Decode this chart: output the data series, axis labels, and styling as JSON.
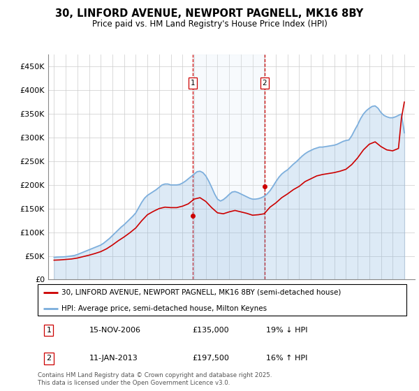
{
  "title": "30, LINFORD AVENUE, NEWPORT PAGNELL, MK16 8BY",
  "subtitle": "Price paid vs. HM Land Registry's House Price Index (HPI)",
  "property_label": "30, LINFORD AVENUE, NEWPORT PAGNELL, MK16 8BY (semi-detached house)",
  "hpi_label": "HPI: Average price, semi-detached house, Milton Keynes",
  "property_color": "#cc0000",
  "hpi_color": "#7aaddc",
  "hpi_fill_color": "#d6e8f5",
  "vline_color": "#cc0000",
  "transactions": [
    {
      "date": 2006.88,
      "price": 135000,
      "label": "1",
      "date_str": "15-NOV-2006",
      "price_str": "£135,000",
      "pct_str": "19% ↓ HPI"
    },
    {
      "date": 2013.03,
      "price": 197500,
      "label": "2",
      "date_str": "11-JAN-2013",
      "price_str": "£197,500",
      "pct_str": "16% ↑ HPI"
    }
  ],
  "footnote1": "Contains HM Land Registry data © Crown copyright and database right 2025.",
  "footnote2": "This data is licensed under the Open Government Licence v3.0.",
  "ylim": [
    0,
    475000
  ],
  "yticks": [
    0,
    50000,
    100000,
    150000,
    200000,
    250000,
    300000,
    350000,
    400000,
    450000
  ],
  "ytick_labels": [
    "£0",
    "£50K",
    "£100K",
    "£150K",
    "£200K",
    "£250K",
    "£300K",
    "£350K",
    "£400K",
    "£450K"
  ],
  "xlim_start": 1994.5,
  "xlim_end": 2025.9,
  "hpi_data": [
    [
      1995.0,
      47000
    ],
    [
      1995.25,
      47500
    ],
    [
      1995.5,
      47800
    ],
    [
      1995.75,
      48000
    ],
    [
      1996.0,
      48500
    ],
    [
      1996.25,
      49200
    ],
    [
      1996.5,
      50000
    ],
    [
      1996.75,
      51000
    ],
    [
      1997.0,
      53000
    ],
    [
      1997.25,
      55500
    ],
    [
      1997.5,
      58000
    ],
    [
      1997.75,
      60500
    ],
    [
      1998.0,
      63000
    ],
    [
      1998.25,
      65500
    ],
    [
      1998.5,
      68000
    ],
    [
      1998.75,
      70500
    ],
    [
      1999.0,
      73000
    ],
    [
      1999.25,
      77000
    ],
    [
      1999.5,
      82000
    ],
    [
      1999.75,
      87000
    ],
    [
      2000.0,
      93000
    ],
    [
      2000.25,
      99000
    ],
    [
      2000.5,
      105000
    ],
    [
      2000.75,
      111000
    ],
    [
      2001.0,
      116000
    ],
    [
      2001.25,
      122000
    ],
    [
      2001.5,
      128000
    ],
    [
      2001.75,
      134000
    ],
    [
      2002.0,
      141000
    ],
    [
      2002.25,
      152000
    ],
    [
      2002.5,
      163000
    ],
    [
      2002.75,
      172000
    ],
    [
      2003.0,
      178000
    ],
    [
      2003.25,
      182000
    ],
    [
      2003.5,
      186000
    ],
    [
      2003.75,
      190000
    ],
    [
      2004.0,
      195000
    ],
    [
      2004.25,
      200000
    ],
    [
      2004.5,
      202000
    ],
    [
      2004.75,
      202000
    ],
    [
      2005.0,
      200000
    ],
    [
      2005.25,
      200000
    ],
    [
      2005.5,
      200000
    ],
    [
      2005.75,
      201000
    ],
    [
      2006.0,
      204000
    ],
    [
      2006.25,
      208000
    ],
    [
      2006.5,
      213000
    ],
    [
      2006.75,
      218000
    ],
    [
      2007.0,
      223000
    ],
    [
      2007.25,
      228000
    ],
    [
      2007.5,
      229000
    ],
    [
      2007.75,
      226000
    ],
    [
      2008.0,
      219000
    ],
    [
      2008.25,
      208000
    ],
    [
      2008.5,
      195000
    ],
    [
      2008.75,
      181000
    ],
    [
      2009.0,
      170000
    ],
    [
      2009.25,
      166000
    ],
    [
      2009.5,
      169000
    ],
    [
      2009.75,
      174000
    ],
    [
      2010.0,
      180000
    ],
    [
      2010.25,
      185000
    ],
    [
      2010.5,
      186000
    ],
    [
      2010.75,
      184000
    ],
    [
      2011.0,
      181000
    ],
    [
      2011.25,
      178000
    ],
    [
      2011.5,
      175000
    ],
    [
      2011.75,
      172000
    ],
    [
      2012.0,
      170000
    ],
    [
      2012.25,
      170000
    ],
    [
      2012.5,
      171000
    ],
    [
      2012.75,
      173000
    ],
    [
      2013.0,
      176000
    ],
    [
      2013.25,
      181000
    ],
    [
      2013.5,
      188000
    ],
    [
      2013.75,
      197000
    ],
    [
      2014.0,
      207000
    ],
    [
      2014.25,
      216000
    ],
    [
      2014.5,
      223000
    ],
    [
      2014.75,
      228000
    ],
    [
      2015.0,
      232000
    ],
    [
      2015.25,
      238000
    ],
    [
      2015.5,
      244000
    ],
    [
      2015.75,
      249000
    ],
    [
      2016.0,
      255000
    ],
    [
      2016.25,
      261000
    ],
    [
      2016.5,
      266000
    ],
    [
      2016.75,
      270000
    ],
    [
      2017.0,
      273000
    ],
    [
      2017.25,
      276000
    ],
    [
      2017.5,
      278000
    ],
    [
      2017.75,
      280000
    ],
    [
      2018.0,
      280000
    ],
    [
      2018.25,
      281000
    ],
    [
      2018.5,
      282000
    ],
    [
      2018.75,
      283000
    ],
    [
      2019.0,
      284000
    ],
    [
      2019.25,
      286000
    ],
    [
      2019.5,
      289000
    ],
    [
      2019.75,
      292000
    ],
    [
      2020.0,
      294000
    ],
    [
      2020.25,
      295000
    ],
    [
      2020.5,
      304000
    ],
    [
      2020.75,
      316000
    ],
    [
      2021.0,
      327000
    ],
    [
      2021.25,
      340000
    ],
    [
      2021.5,
      350000
    ],
    [
      2021.75,
      357000
    ],
    [
      2022.0,
      362000
    ],
    [
      2022.25,
      366000
    ],
    [
      2022.5,
      367000
    ],
    [
      2022.75,
      362000
    ],
    [
      2023.0,
      353000
    ],
    [
      2023.25,
      347000
    ],
    [
      2023.5,
      344000
    ],
    [
      2023.75,
      342000
    ],
    [
      2024.0,
      342000
    ],
    [
      2024.25,
      344000
    ],
    [
      2024.5,
      347000
    ],
    [
      2024.75,
      350000
    ],
    [
      2025.0,
      310000
    ]
  ],
  "property_data": [
    [
      1995.0,
      41000
    ],
    [
      1995.5,
      41500
    ],
    [
      1996.0,
      42500
    ],
    [
      1996.5,
      43500
    ],
    [
      1997.0,
      45500
    ],
    [
      1997.5,
      48500
    ],
    [
      1998.0,
      51500
    ],
    [
      1998.5,
      55000
    ],
    [
      1999.0,
      59000
    ],
    [
      1999.5,
      65000
    ],
    [
      2000.0,
      73000
    ],
    [
      2000.5,
      82000
    ],
    [
      2001.0,
      90000
    ],
    [
      2001.5,
      99000
    ],
    [
      2002.0,
      109000
    ],
    [
      2002.5,
      124000
    ],
    [
      2003.0,
      137000
    ],
    [
      2003.5,
      144000
    ],
    [
      2004.0,
      150000
    ],
    [
      2004.5,
      153000
    ],
    [
      2005.0,
      152000
    ],
    [
      2005.5,
      152000
    ],
    [
      2006.0,
      155000
    ],
    [
      2006.5,
      160000
    ],
    [
      2006.75,
      165000
    ],
    [
      2007.0,
      170000
    ],
    [
      2007.5,
      173000
    ],
    [
      2008.0,
      165000
    ],
    [
      2008.5,
      152000
    ],
    [
      2009.0,
      141000
    ],
    [
      2009.5,
      139000
    ],
    [
      2010.0,
      143000
    ],
    [
      2010.5,
      146000
    ],
    [
      2011.0,
      143000
    ],
    [
      2011.5,
      140000
    ],
    [
      2012.0,
      136000
    ],
    [
      2012.5,
      137000
    ],
    [
      2013.0,
      139000
    ],
    [
      2013.5,
      153000
    ],
    [
      2014.0,
      162000
    ],
    [
      2014.5,
      173000
    ],
    [
      2015.0,
      181000
    ],
    [
      2015.5,
      190000
    ],
    [
      2016.0,
      197000
    ],
    [
      2016.5,
      207000
    ],
    [
      2017.0,
      213000
    ],
    [
      2017.5,
      219000
    ],
    [
      2018.0,
      222000
    ],
    [
      2018.5,
      224000
    ],
    [
      2019.0,
      226000
    ],
    [
      2019.5,
      229000
    ],
    [
      2020.0,
      233000
    ],
    [
      2020.5,
      243000
    ],
    [
      2021.0,
      257000
    ],
    [
      2021.5,
      274000
    ],
    [
      2022.0,
      286000
    ],
    [
      2022.5,
      291000
    ],
    [
      2023.0,
      281000
    ],
    [
      2023.5,
      274000
    ],
    [
      2024.0,
      272000
    ],
    [
      2024.5,
      277000
    ],
    [
      2024.75,
      340000
    ],
    [
      2025.0,
      375000
    ]
  ]
}
